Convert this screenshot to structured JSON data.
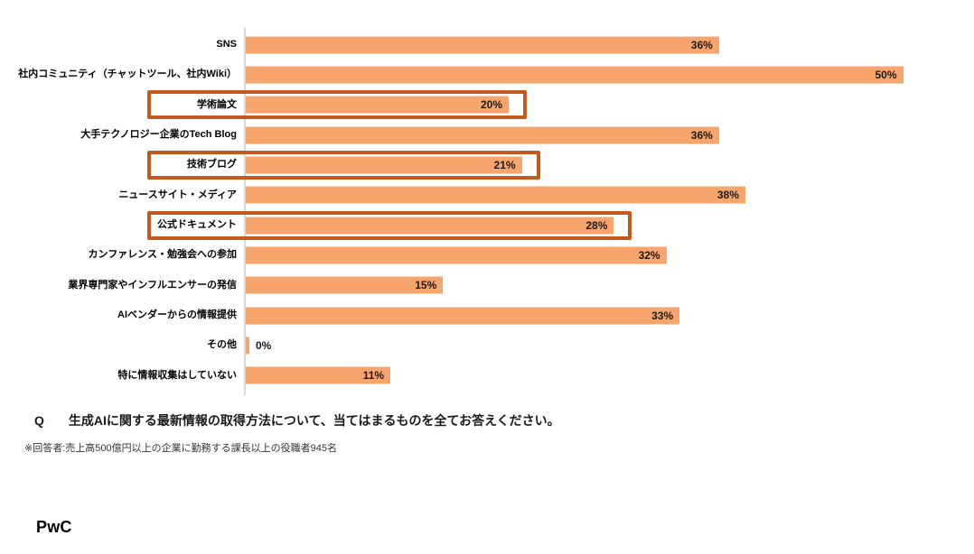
{
  "chart_data": {
    "type": "bar",
    "orientation": "horizontal",
    "unit": "%",
    "categories": [
      "SNS",
      "社内コミュニティ（チャットツール、社内Wiki）",
      "学術論文",
      "大手テクノロジー企業のTech Blog",
      "技術ブログ",
      "ニュースサイト・メディア",
      "公式ドキュメント",
      "カンファレンス・勉強会への参加",
      "業界専門家やインフルエンサーの発信",
      "AIベンダーからの情報提供",
      "その他",
      "特に情報収集はしていない"
    ],
    "values": [
      36,
      50,
      20,
      36,
      21,
      38,
      28,
      32,
      15,
      33,
      0,
      11
    ],
    "value_labels": [
      "36%",
      "50%",
      "20%",
      "36%",
      "21%",
      "38%",
      "28%",
      "32%",
      "15%",
      "33%",
      "0%",
      "11%"
    ],
    "highlighted_indices": [
      2,
      4,
      6
    ],
    "xlim": [
      0,
      55
    ],
    "grid": false,
    "legend": false,
    "bar_color": "#F7A46D",
    "highlight_border_color": "#C2591D",
    "axis_line_color": "#D9D9D9"
  },
  "question": {
    "prefix": "Q",
    "text": "生成AIに関する最新情報の取得方法について、当てはまるものを全てお答えください。"
  },
  "note": "※回答者:売上高500億円以上の企業に勤務する課長以上の役職者945名",
  "footer": {
    "logo": "PwC"
  }
}
